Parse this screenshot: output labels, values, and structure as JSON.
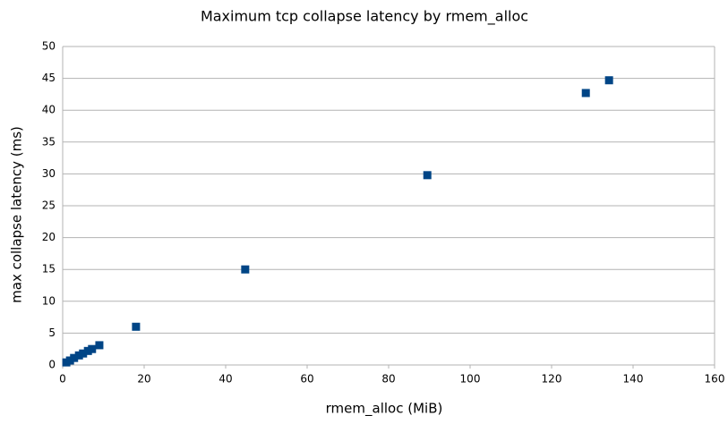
{
  "chart_data": {
    "type": "scatter",
    "title": "Maximum tcp collapse latency by rmem_alloc",
    "x_label": "rmem_alloc (MiB)",
    "y_label": "max collapse latency (ms)",
    "series": [
      {
        "color": "#004586",
        "x": [
          0.9,
          1.8,
          2.8,
          4.0,
          5.0,
          6.2,
          7.2,
          9.0,
          18.0,
          44.8,
          89.5,
          128.4,
          134.1
        ],
        "values": [
          0.4,
          0.7,
          1.1,
          1.5,
          1.8,
          2.2,
          2.5,
          3.1,
          6.0,
          15.0,
          29.8,
          42.7,
          44.7
        ]
      }
    ],
    "xlim": [
      0,
      160
    ],
    "xticks": [
      0,
      20,
      40,
      60,
      80,
      100,
      120,
      140,
      160
    ],
    "ylim": [
      0,
      50
    ],
    "yticks": [
      0,
      5,
      10,
      15,
      20,
      25,
      30,
      35,
      40,
      45,
      50
    ],
    "grid": true
  }
}
